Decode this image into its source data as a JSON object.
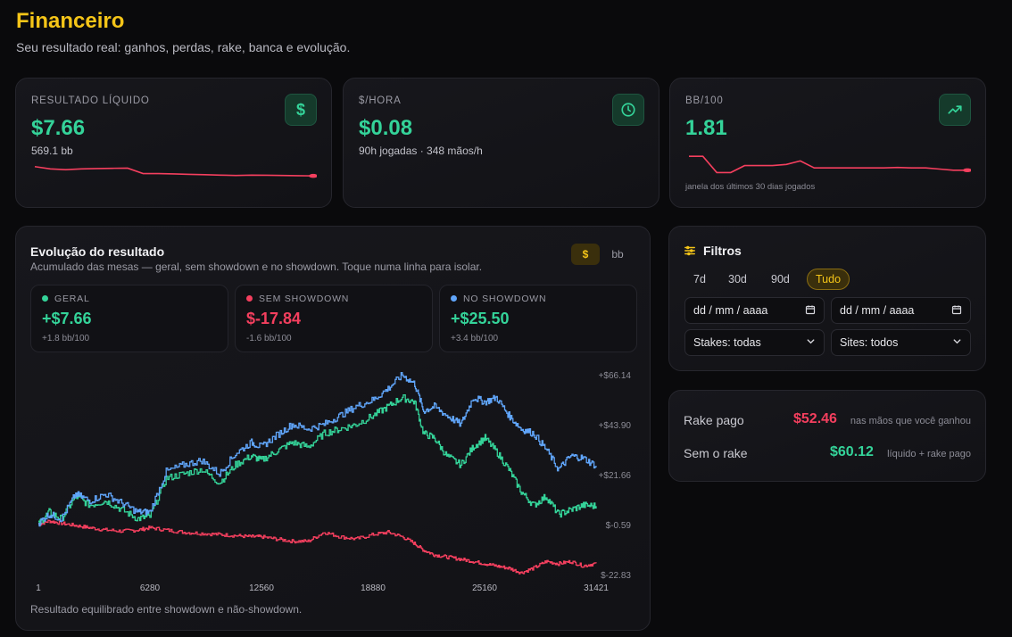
{
  "header": {
    "title": "Financeiro",
    "subtitle": "Seu resultado real: ganhos, perdas, rake, banca e evolução."
  },
  "kpis": [
    {
      "label": "RESULTADO LÍQUIDO",
      "value": "$7.66",
      "sub": "569.1 bb",
      "icon": "dollar-icon"
    },
    {
      "label": "$/HORA",
      "value": "$0.08",
      "sub": "90h jogadas · 348 mãos/h",
      "icon": "clock-icon"
    },
    {
      "label": "BB/100",
      "value": "1.81",
      "note": "janela dos últimos 30 dias jogados",
      "icon": "trending-up-icon"
    }
  ],
  "chart": {
    "title": "Evolução do resultado",
    "subtitle": "Acumulado das mesas — geral, sem showdown e no showdown. Toque numa linha para isolar.",
    "toggle": {
      "dollar": "$",
      "bb": "bb",
      "active": "dollar"
    },
    "series_cards": [
      {
        "label": "GERAL",
        "value": "+$7.66",
        "sub": "+1.8 bb/100",
        "color": "#34d399"
      },
      {
        "label": "SEM SHOWDOWN",
        "value": "$-17.84",
        "sub": "-1.6 bb/100",
        "color": "#f43f5e"
      },
      {
        "label": "NO SHOWDOWN",
        "value": "+$25.50",
        "sub": "+3.4 bb/100",
        "color": "#60a5fa"
      }
    ],
    "footer": "Resultado equilibrado entre showdown e não-showdown."
  },
  "chart_data": {
    "type": "line",
    "x_ticks": [
      "1",
      "6280",
      "12560",
      "18880",
      "25160",
      "31421"
    ],
    "y_ticks": [
      "+$66.14",
      "+$43.90",
      "+$21.66",
      "$-0.59",
      "$-22.83"
    ],
    "xlim": [
      1,
      31421
    ],
    "ylim": [
      -22.83,
      66.14
    ],
    "series": [
      {
        "color": "#34d399",
        "x": [
          1,
          600,
          1300,
          2100,
          2900,
          3800,
          4700,
          5600,
          6280,
          7200,
          8200,
          9200,
          10200,
          11100,
          12000,
          12560,
          13400,
          14300,
          15200,
          16100,
          17000,
          17900,
          18880,
          19700,
          20500,
          21200,
          21700,
          22300,
          23000,
          23800,
          24500,
          25160,
          25800,
          26500,
          27200,
          27900,
          28600,
          29300,
          30000,
          30700,
          31421
        ],
        "y": [
          -0.5,
          5,
          2,
          12,
          8,
          10,
          6,
          2,
          3,
          20,
          22,
          24,
          18,
          26,
          30,
          28,
          32,
          36,
          34,
          40,
          42,
          44,
          48,
          52,
          56,
          54,
          40,
          38,
          30,
          26,
          34,
          38,
          32,
          24,
          14,
          8,
          12,
          4,
          6,
          8,
          7.66
        ]
      },
      {
        "color": "#f43f5e",
        "x": [
          1,
          600,
          1300,
          2100,
          2900,
          3800,
          4700,
          5600,
          6280,
          7200,
          8200,
          9200,
          10200,
          11100,
          12000,
          12560,
          13400,
          14300,
          15200,
          16100,
          17000,
          17900,
          18880,
          19700,
          20500,
          21200,
          21700,
          22300,
          23000,
          23800,
          24500,
          25160,
          25800,
          26500,
          27200,
          27900,
          28600,
          29300,
          30000,
          30700,
          31421
        ],
        "y": [
          -0.5,
          1,
          0,
          -1,
          -2,
          -3,
          -3.5,
          -3,
          -2,
          -3,
          -4,
          -4.5,
          -5,
          -5.5,
          -6,
          -6,
          -7,
          -8,
          -8,
          -4,
          -6,
          -7,
          -5,
          -4,
          -6,
          -9,
          -12,
          -14,
          -15,
          -16,
          -17,
          -18,
          -19,
          -20,
          -22,
          -20,
          -17,
          -18,
          -17,
          -19,
          -17.84
        ]
      },
      {
        "color": "#60a5fa",
        "x": [
          1,
          600,
          1300,
          2100,
          2900,
          3800,
          4700,
          5600,
          6280,
          7200,
          8200,
          9200,
          10200,
          11100,
          12000,
          12560,
          13400,
          14300,
          15200,
          16100,
          17000,
          17900,
          18880,
          19700,
          20500,
          21200,
          21700,
          22300,
          23000,
          23800,
          24500,
          25160,
          25800,
          26500,
          27200,
          27900,
          28600,
          29300,
          30000,
          30700,
          31421
        ],
        "y": [
          0,
          4,
          2,
          13,
          10,
          13,
          9,
          5,
          5,
          23,
          26,
          28,
          22,
          31,
          36,
          34,
          39,
          44,
          42,
          44,
          48,
          52,
          55,
          60,
          66,
          62,
          50,
          52,
          48,
          44,
          56,
          54,
          56,
          48,
          42,
          40,
          33,
          24,
          30,
          29,
          25.5
        ]
      }
    ]
  },
  "filters": {
    "title": "Filtros",
    "ranges": [
      "7d",
      "30d",
      "90d",
      "Tudo"
    ],
    "active_range": "Tudo",
    "date_from_placeholder": "dd / mm / aaaa",
    "date_to_placeholder": "dd / mm / aaaa",
    "stakes": "Stakes: todas",
    "sites": "Sites: todos"
  },
  "rake": {
    "paid_label": "Rake pago",
    "paid_value": "$52.46",
    "paid_note": "nas mãos que você ganhou",
    "without_label": "Sem o rake",
    "without_value": "$60.12",
    "without_note": "líquido + rake pago"
  },
  "sparklines": {
    "resultado": [
      28,
      25,
      24,
      25,
      25.5,
      25.8,
      26,
      19,
      19,
      18.5,
      18,
      17.5,
      17,
      16.5,
      17,
      16.8,
      16.5,
      16.2,
      16
    ],
    "bb100": [
      8,
      8,
      1,
      1,
      4,
      4,
      4,
      4.5,
      6,
      3,
      3,
      3,
      3,
      3,
      3,
      3.2,
      3,
      3,
      2.5,
      2,
      2
    ]
  }
}
